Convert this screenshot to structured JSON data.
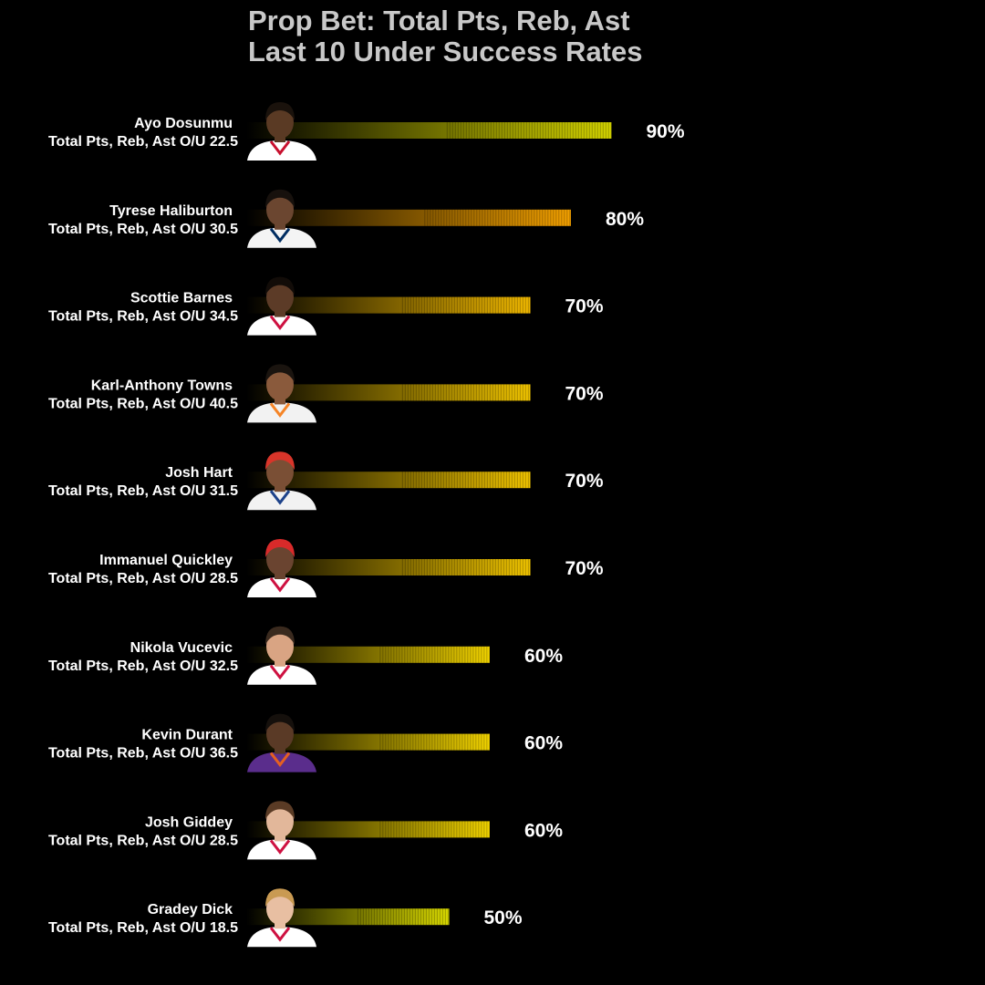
{
  "chart_data": {
    "type": "bar",
    "orientation": "horizontal",
    "title_lines": [
      "Prop Bet: Total Pts, Reb, Ast",
      "Last 10 Under Success Rates"
    ],
    "xlim": [
      0,
      100
    ],
    "grid": false,
    "legend": "none",
    "background": "#000000",
    "title_color": "#c8c8c8",
    "bars": [
      {
        "player": "Ayo Dosunmu",
        "line": "Total Pts, Reb, Ast O/U 22.5",
        "value": 90,
        "label": "90%",
        "color": "#d4d400",
        "avatar": {
          "skin": "#5a3a24",
          "hair": "#1a120c",
          "jersey": "#ffffff",
          "trim": "#c8102e"
        }
      },
      {
        "player": "Tyrese Haliburton",
        "line": "Total Pts, Reb, Ast O/U 30.5",
        "value": 80,
        "label": "80%",
        "color": "#f2a000",
        "avatar": {
          "skin": "#6b4630",
          "hair": "#17110d",
          "jersey": "#f4f4f4",
          "trim": "#002d62"
        }
      },
      {
        "player": "Scottie Barnes",
        "line": "Total Pts, Reb, Ast O/U 34.5",
        "value": 70,
        "label": "70%",
        "color": "#f0b800",
        "avatar": {
          "skin": "#5c3b27",
          "hair": "#120c08",
          "jersey": "#ffffff",
          "trim": "#ce1141"
        }
      },
      {
        "player": "Karl-Anthony Towns",
        "line": "Total Pts, Reb, Ast O/U 40.5",
        "value": 70,
        "label": "70%",
        "color": "#f0c400",
        "avatar": {
          "skin": "#8a5a3c",
          "hair": "#1a140f",
          "jersey": "#f2f2f2",
          "trim": "#f58426"
        }
      },
      {
        "player": "Josh Hart",
        "line": "Total Pts, Reb, Ast O/U 31.5",
        "value": 70,
        "label": "70%",
        "color": "#f0c400",
        "avatar": {
          "skin": "#7a4f35",
          "hair": "#d8352a",
          "jersey": "#f2f2f2",
          "trim": "#1d428a"
        }
      },
      {
        "player": "Immanuel Quickley",
        "line": "Total Pts, Reb, Ast O/U 28.5",
        "value": 70,
        "label": "70%",
        "color": "#f0c400",
        "avatar": {
          "skin": "#6a4430",
          "hair": "#d82a2a",
          "jersey": "#ffffff",
          "trim": "#ce1141"
        }
      },
      {
        "player": "Nikola Vucevic",
        "line": "Total Pts, Reb, Ast O/U 32.5",
        "value": 60,
        "label": "60%",
        "color": "#f2d400",
        "avatar": {
          "skin": "#d9a483",
          "hair": "#3a2a1e",
          "jersey": "#ffffff",
          "trim": "#ce1141"
        }
      },
      {
        "player": "Kevin Durant",
        "line": "Total Pts, Reb, Ast O/U 36.5",
        "value": 60,
        "label": "60%",
        "color": "#f2d400",
        "avatar": {
          "skin": "#5a3a26",
          "hair": "#15100c",
          "jersey": "#5a2d8c",
          "trim": "#e56020"
        }
      },
      {
        "player": "Josh Giddey",
        "line": "Total Pts, Reb, Ast O/U 28.5",
        "value": 60,
        "label": "60%",
        "color": "#f2d400",
        "avatar": {
          "skin": "#e2b79a",
          "hair": "#5a3b25",
          "jersey": "#ffffff",
          "trim": "#ce1141"
        }
      },
      {
        "player": "Gradey Dick",
        "line": "Total Pts, Reb, Ast O/U 18.5",
        "value": 50,
        "label": "50%",
        "color": "#d8d800",
        "avatar": {
          "skin": "#e8bfa2",
          "hair": "#c99a52",
          "jersey": "#ffffff",
          "trim": "#ce1141"
        }
      }
    ]
  }
}
